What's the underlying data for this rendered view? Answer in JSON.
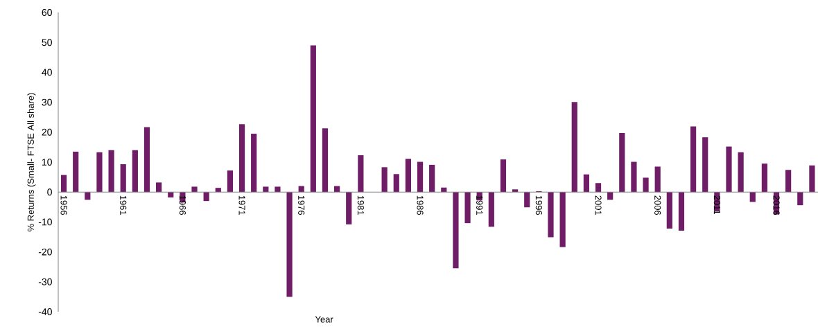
{
  "chart_data": {
    "type": "bar",
    "xlabel": "Year",
    "ylabel": "% Returns (Small- FTSE All share)",
    "categories": [
      "1956",
      null,
      null,
      null,
      null,
      "1961",
      null,
      null,
      null,
      null,
      "1966",
      null,
      null,
      null,
      null,
      "1971",
      null,
      null,
      null,
      null,
      "1976",
      null,
      null,
      null,
      null,
      "1981",
      null,
      null,
      null,
      null,
      "1986",
      null,
      null,
      null,
      null,
      "1991",
      null,
      null,
      null,
      null,
      "1996",
      null,
      null,
      null,
      null,
      "2001",
      null,
      null,
      null,
      null,
      "2006",
      null,
      null,
      null,
      null,
      "2011",
      null,
      null,
      null,
      null,
      "2016",
      null,
      null,
      null
    ],
    "values": [
      5.7,
      13.5,
      -2.6,
      13.3,
      14,
      9.3,
      14,
      21.7,
      3.2,
      -1.8,
      -3.5,
      1.8,
      -3,
      1.4,
      7.2,
      22.7,
      19.5,
      1.8,
      1.8,
      -35,
      2,
      49,
      21.3,
      2,
      -10.8,
      12.3,
      0,
      8.3,
      6,
      11.1,
      10.1,
      9.1,
      1.5,
      -25.5,
      -10.4,
      -2.8,
      -11.6,
      10.9,
      0.9,
      -5.1,
      0.3,
      -15.1,
      -18.4,
      30.1,
      5.9,
      3,
      -2.6,
      19.7,
      10.1,
      4.8,
      8.5,
      -12.2,
      -12.9,
      21.9,
      18.3,
      -6.5,
      15.2,
      13.3,
      -3.3,
      9.5,
      -7.5,
      7.4,
      -4.4,
      8.9
    ],
    "color": "#6f1d66",
    "ylim": [
      -40,
      60
    ],
    "yticks": [
      -40,
      -30,
      -20,
      -10,
      0,
      10,
      20,
      30,
      40,
      50,
      60
    ],
    "grid": false
  }
}
